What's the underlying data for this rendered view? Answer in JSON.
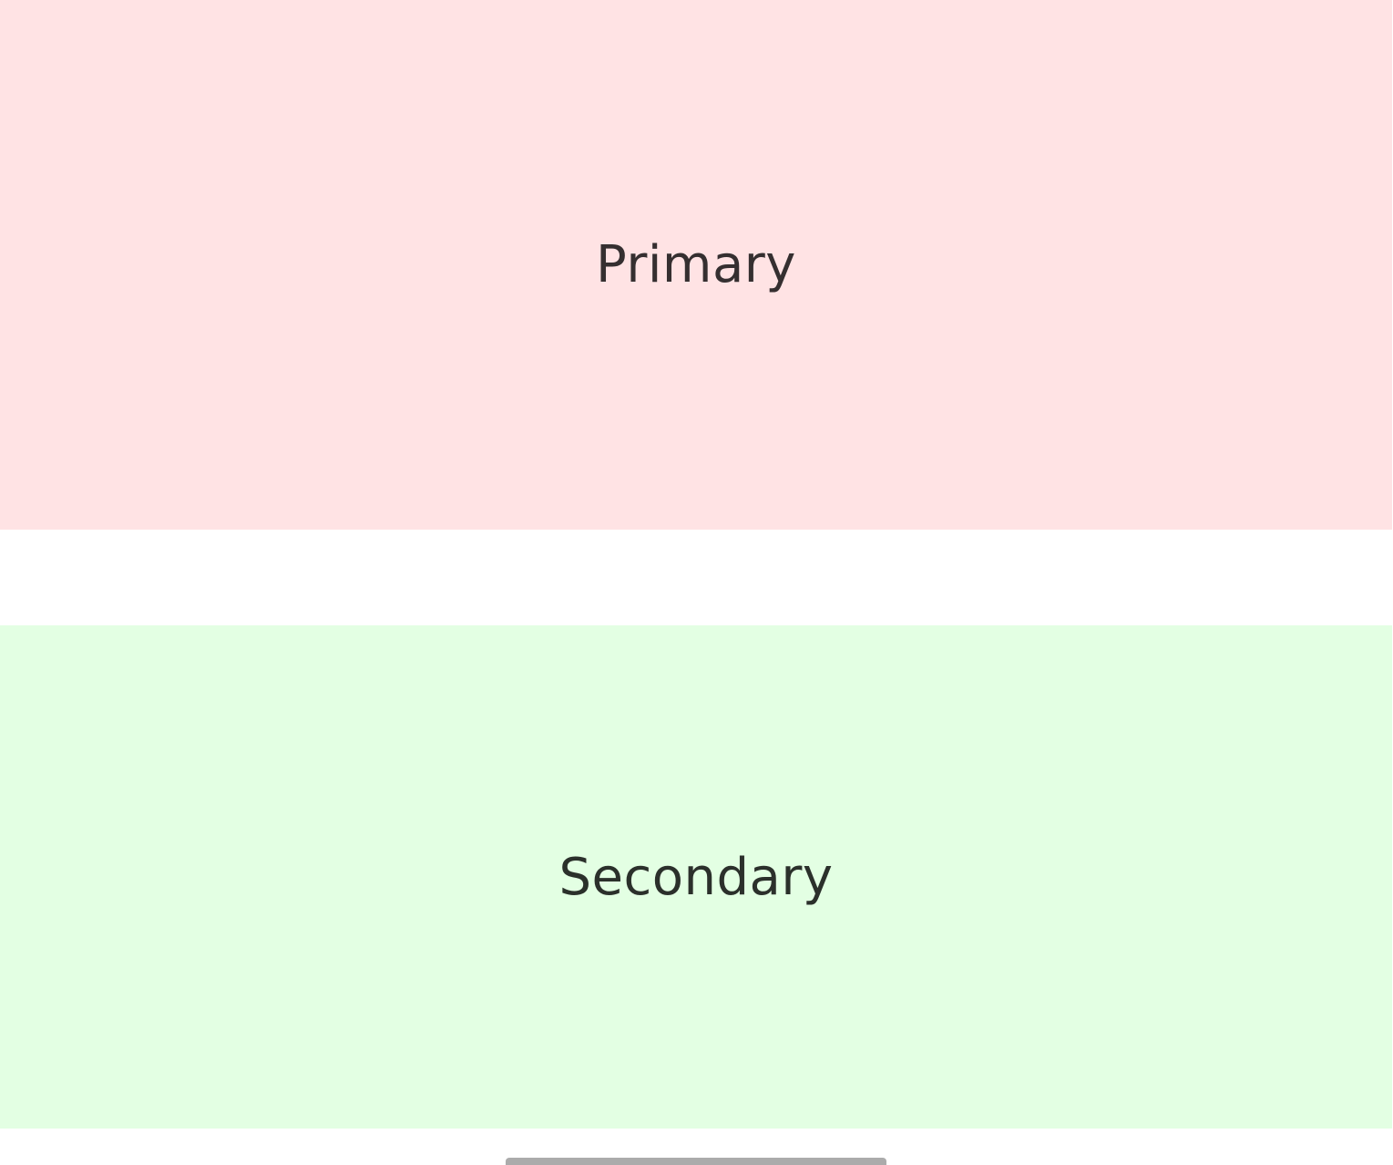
{
  "panes": {
    "primary": {
      "label": "Primary",
      "color": "#ffe3e4"
    },
    "secondary": {
      "label": "Secondary",
      "color": "#e3ffe3"
    }
  },
  "navigation": {
    "handle_icon": "gesture-handle-icon",
    "color": "#ababab"
  }
}
